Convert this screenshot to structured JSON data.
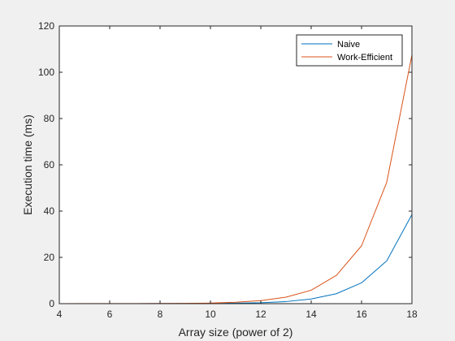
{
  "chart_data": {
    "type": "line",
    "title": "",
    "xlabel": "Array size (power of 2)",
    "ylabel": "Execution time (ms)",
    "x": [
      4,
      5,
      6,
      7,
      8,
      9,
      10,
      11,
      12,
      13,
      14,
      15,
      16,
      17,
      18
    ],
    "xlim": [
      4,
      18
    ],
    "ylim": [
      0,
      120
    ],
    "xticks": [
      4,
      6,
      8,
      10,
      12,
      14,
      16,
      18
    ],
    "yticks": [
      0,
      20,
      40,
      60,
      80,
      100,
      120
    ],
    "xtick_labels": [
      "4",
      "6",
      "8",
      "10",
      "12",
      "14",
      "16",
      "18"
    ],
    "ytick_labels": [
      "0",
      "20",
      "40",
      "60",
      "80",
      "100",
      "120"
    ],
    "grid": false,
    "legend_position": "top-right",
    "background_color": "#ffffff",
    "figure_color": "#f0f0f0",
    "series": [
      {
        "name": "Naive",
        "color": "#0072bd",
        "values": [
          0.01,
          0.01,
          0.01,
          0.02,
          0.03,
          0.05,
          0.1,
          0.2,
          0.4,
          0.9,
          2.0,
          4.3,
          9.0,
          18.5,
          38.5
        ]
      },
      {
        "name": "Work-Efficient",
        "color": "#d95319",
        "values": [
          0.02,
          0.03,
          0.04,
          0.05,
          0.07,
          0.12,
          0.25,
          0.6,
          1.3,
          2.8,
          5.8,
          12.2,
          25.0,
          52.5,
          107.5
        ]
      }
    ]
  }
}
